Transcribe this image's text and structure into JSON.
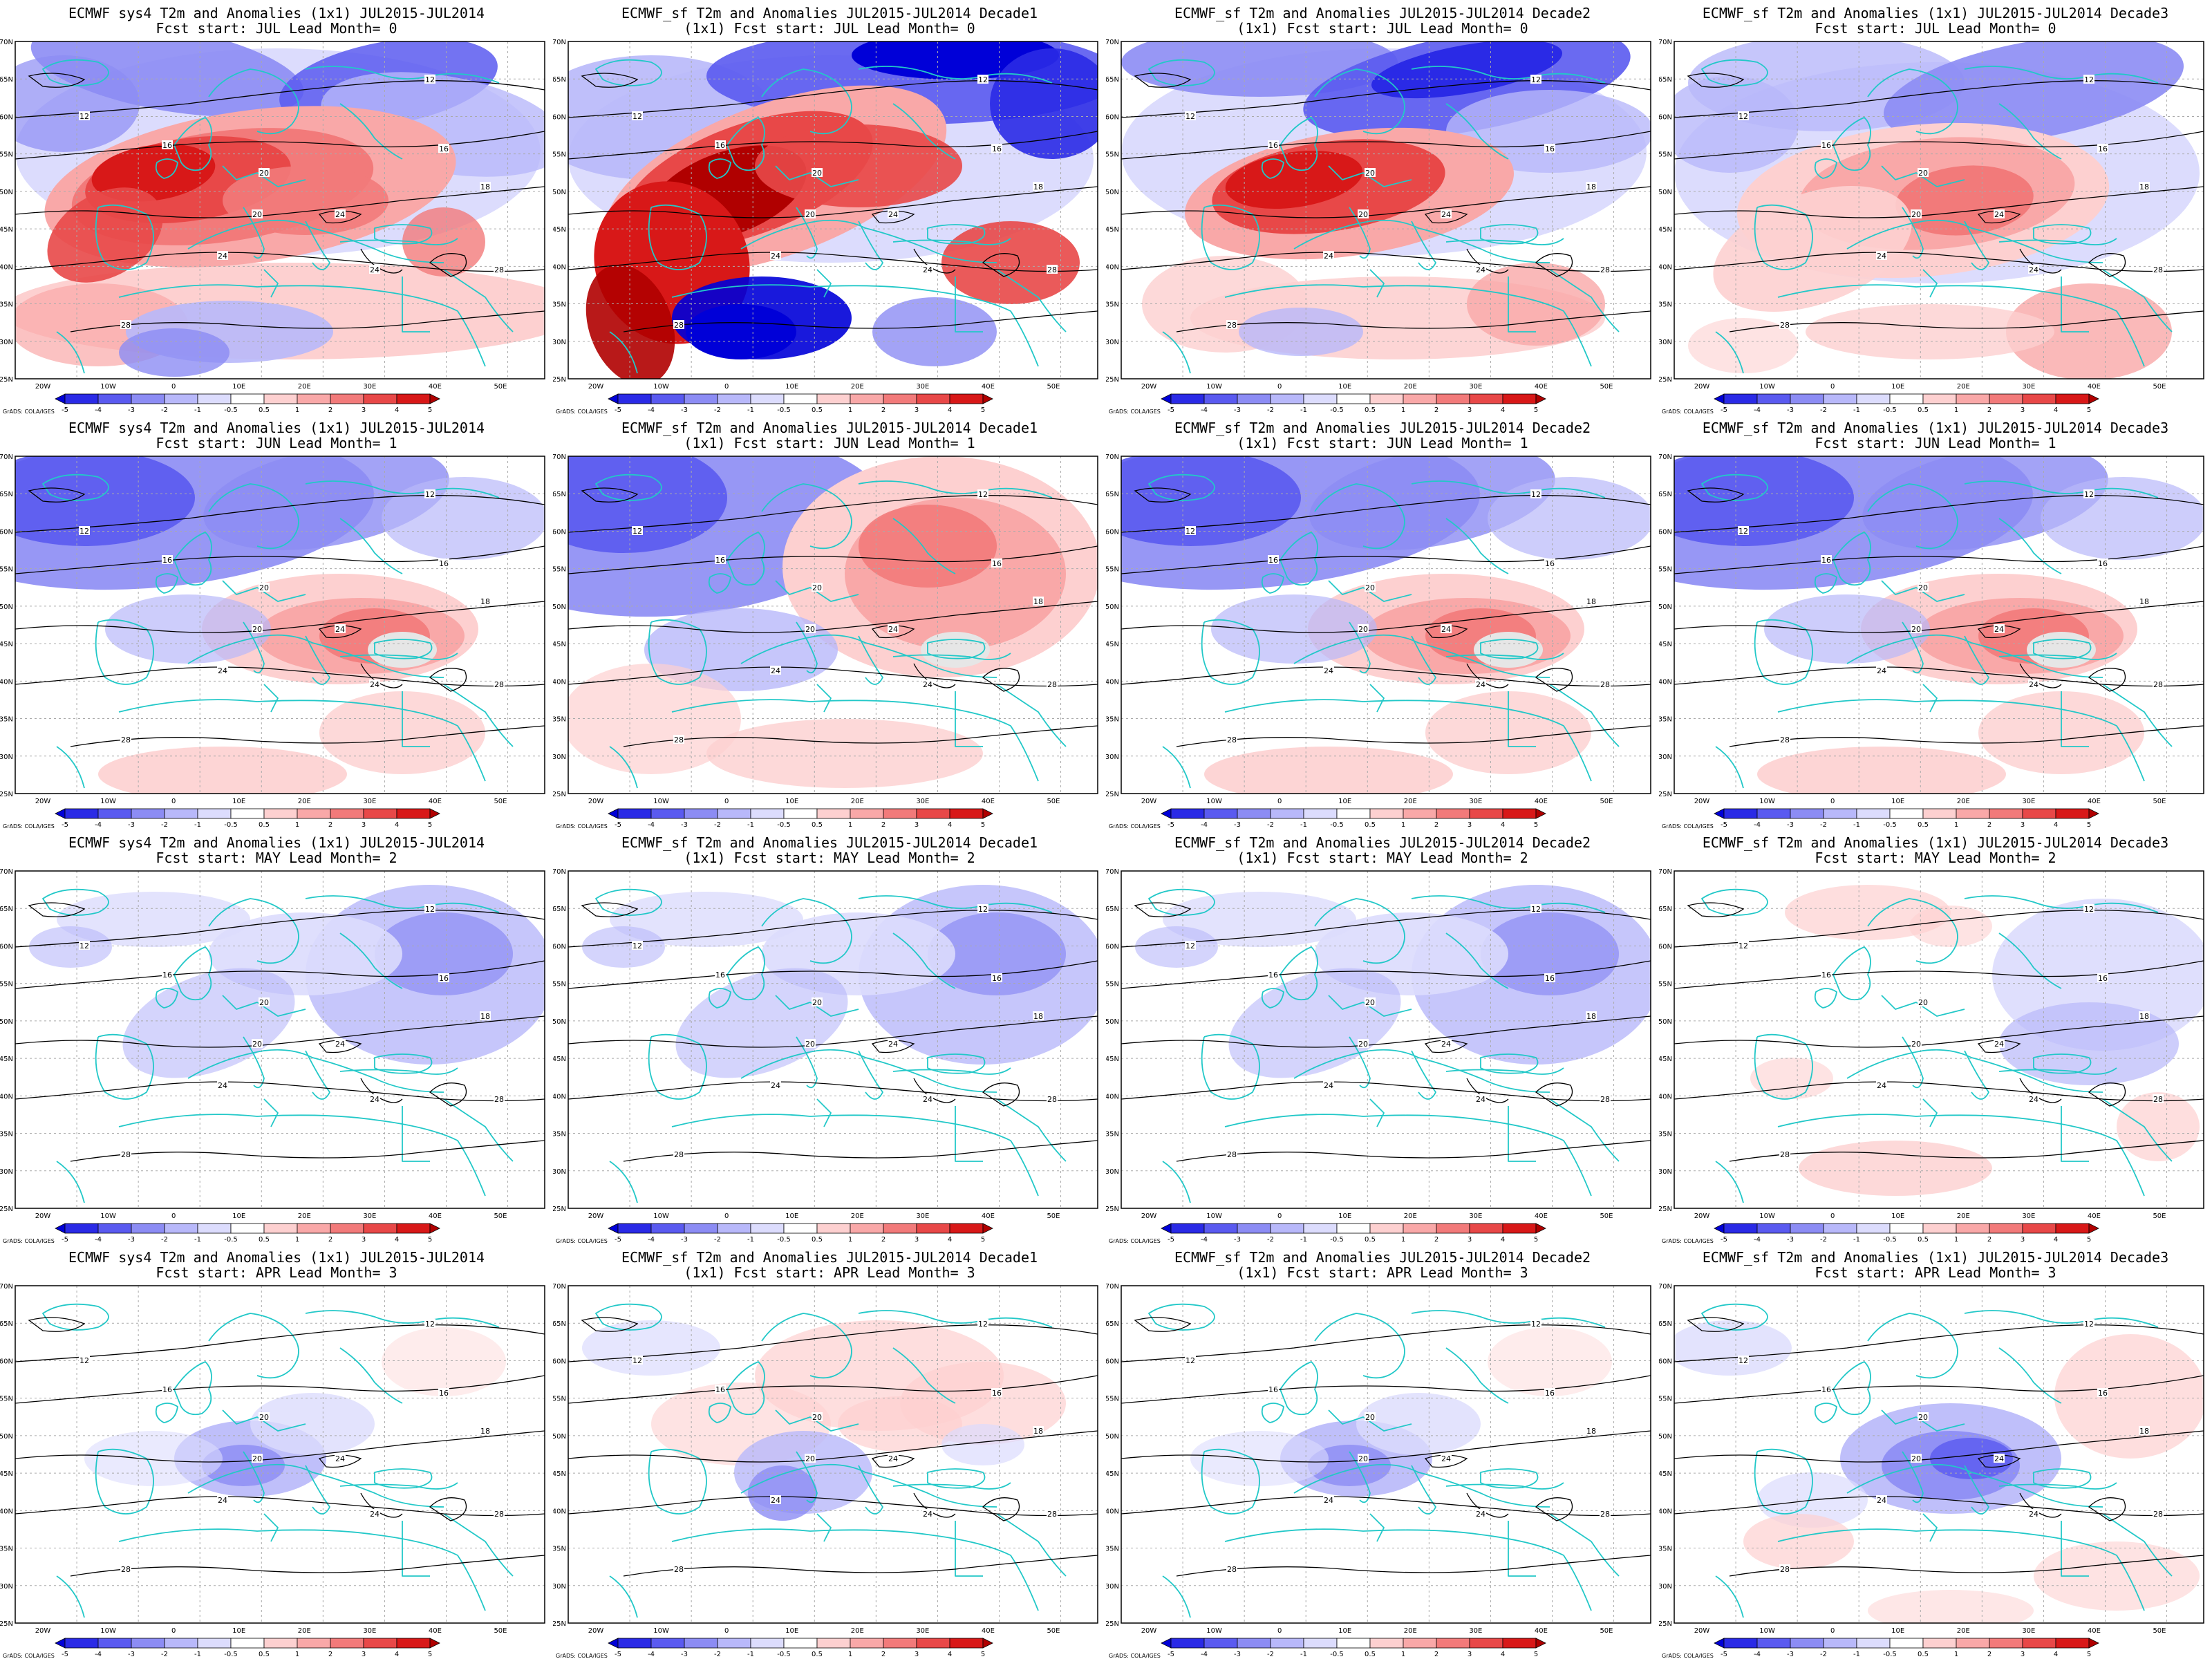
{
  "credit": "GrADS: COLA/IGES",
  "colorbar": {
    "labels": [
      "-5",
      "-4",
      "-3",
      "-2",
      "-1",
      "-0.5",
      "0.5",
      "1",
      "2",
      "3",
      "4",
      "5"
    ],
    "colors": [
      "#0000d8",
      "#2a2ae6",
      "#5a5af0",
      "#8c8cf4",
      "#b8b8fa",
      "#dcdcfd",
      "#ffffff",
      "#fdd0d0",
      "#f9a8a8",
      "#f27a7a",
      "#e84848",
      "#d81818",
      "#b00000"
    ]
  },
  "lat_labels": [
    "70N",
    "65N",
    "60N",
    "55N",
    "50N",
    "45N",
    "40N",
    "35N",
    "30N",
    "25N"
  ],
  "lon_labels": [
    "20W",
    "10W",
    "0",
    "10E",
    "20E",
    "30E",
    "40E",
    "50E"
  ],
  "panels": [
    {
      "title1": "ECMWF sys4 T2m and Anomalies (1x1) JUL2015-JUL2014",
      "title2": "Fcst start: JUL  Lead Month= 0",
      "pattern": "r0c0"
    },
    {
      "title1": "ECMWF_sf T2m and Anomalies JUL2015-JUL2014 Decade1",
      "title2": "(1x1) Fcst start: JUL  Lead Month= 0",
      "pattern": "r0c1"
    },
    {
      "title1": "ECMWF_sf T2m and Anomalies JUL2015-JUL2014 Decade2",
      "title2": "(1x1) Fcst start: JUL  Lead Month= 0",
      "pattern": "r0c2"
    },
    {
      "title1": "ECMWF_sf T2m and Anomalies (1x1) JUL2015-JUL2014 Decade3",
      "title2": "Fcst start: JUL  Lead Month= 0",
      "pattern": "r0c3"
    },
    {
      "title1": "ECMWF sys4 T2m and Anomalies (1x1) JUL2015-JUL2014",
      "title2": "Fcst start: JUN  Lead Month= 1",
      "pattern": "r1"
    },
    {
      "title1": "ECMWF_sf T2m and Anomalies JUL2015-JUL2014 Decade1",
      "title2": "(1x1) Fcst start: JUN  Lead Month= 1",
      "pattern": "r1b"
    },
    {
      "title1": "ECMWF_sf T2m and Anomalies JUL2015-JUL2014 Decade2",
      "title2": "(1x1) Fcst start: JUN  Lead Month= 1",
      "pattern": "r1"
    },
    {
      "title1": "ECMWF_sf T2m and Anomalies (1x1) JUL2015-JUL2014 Decade3",
      "title2": "Fcst start: JUN  Lead Month= 1",
      "pattern": "r1"
    },
    {
      "title1": "ECMWF sys4 T2m and Anomalies (1x1) JUL2015-JUL2014",
      "title2": "Fcst start: MAY  Lead Month= 2",
      "pattern": "r2"
    },
    {
      "title1": "ECMWF_sf T2m and Anomalies JUL2015-JUL2014 Decade1",
      "title2": "(1x1) Fcst start: MAY  Lead Month= 2",
      "pattern": "r2"
    },
    {
      "title1": "ECMWF_sf T2m and Anomalies JUL2015-JUL2014 Decade2",
      "title2": "(1x1) Fcst start: MAY  Lead Month= 2",
      "pattern": "r2"
    },
    {
      "title1": "ECMWF_sf T2m and Anomalies (1x1) JUL2015-JUL2014 Decade3",
      "title2": "Fcst start: MAY  Lead Month= 2",
      "pattern": "r2c3"
    },
    {
      "title1": "ECMWF sys4 T2m and Anomalies (1x1) JUL2015-JUL2014",
      "title2": "Fcst start: APR  Lead Month= 3",
      "pattern": "r3"
    },
    {
      "title1": "ECMWF_sf T2m and Anomalies JUL2015-JUL2014 Decade1",
      "title2": "(1x1) Fcst start: APR  Lead Month= 3",
      "pattern": "r3b"
    },
    {
      "title1": "ECMWF_sf T2m and Anomalies JUL2015-JUL2014 Decade2",
      "title2": "(1x1) Fcst start: APR  Lead Month= 3",
      "pattern": "r3"
    },
    {
      "title1": "ECMWF_sf T2m and Anomalies (1x1) JUL2015-JUL2014 Decade3",
      "title2": "Fcst start: APR  Lead Month= 3",
      "pattern": "r3c3"
    }
  ]
}
